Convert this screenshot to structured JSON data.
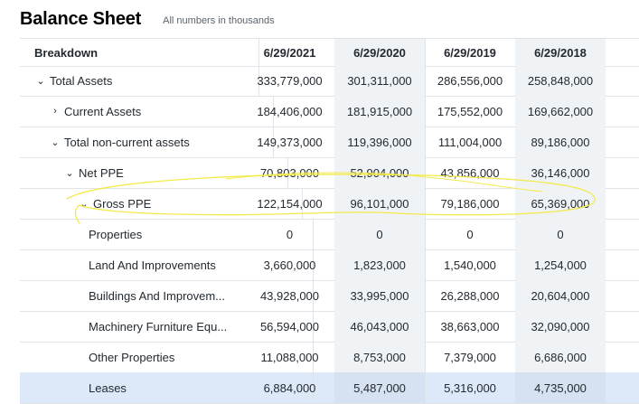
{
  "header": {
    "title": "Balance Sheet",
    "subtitle": "All numbers in thousands"
  },
  "table": {
    "breakdown_label": "Breakdown",
    "columns": [
      "6/29/2021",
      "6/29/2020",
      "6/29/2019",
      "6/29/2018"
    ],
    "rows": [
      {
        "label": "Total Assets",
        "chevron": "⌄",
        "values": [
          "333,779,000",
          "301,311,000",
          "286,556,000",
          "258,848,000"
        ]
      },
      {
        "label": "Current Assets",
        "chevron": "›",
        "values": [
          "184,406,000",
          "181,915,000",
          "175,552,000",
          "169,662,000"
        ]
      },
      {
        "label": "Total non-current assets",
        "chevron": "⌄",
        "values": [
          "149,373,000",
          "119,396,000",
          "111,004,000",
          "89,186,000"
        ]
      },
      {
        "label": "Net PPE",
        "chevron": "⌄",
        "values": [
          "70,803,000",
          "52,904,000",
          "43,856,000",
          "36,146,000"
        ]
      },
      {
        "label": "Gross PPE",
        "chevron": "⌄",
        "values": [
          "122,154,000",
          "96,101,000",
          "79,186,000",
          "65,369,000"
        ]
      },
      {
        "label": "Properties",
        "values": [
          "0",
          "0",
          "0",
          "0"
        ]
      },
      {
        "label": "Land And Improvements",
        "values": [
          "3,660,000",
          "1,823,000",
          "1,540,000",
          "1,254,000"
        ]
      },
      {
        "label": "Buildings And Improvem...",
        "values": [
          "43,928,000",
          "33,995,000",
          "26,288,000",
          "20,604,000"
        ]
      },
      {
        "label": "Machinery Furniture Equ...",
        "values": [
          "56,594,000",
          "46,043,000",
          "38,663,000",
          "32,090,000"
        ]
      },
      {
        "label": "Other Properties",
        "values": [
          "11,088,000",
          "8,753,000",
          "7,379,000",
          "6,686,000"
        ]
      },
      {
        "label": "Leases",
        "values": [
          "6,884,000",
          "5,487,000",
          "5,316,000",
          "4,735,000"
        ]
      }
    ]
  },
  "colors": {
    "annotation": "#f2ea4a",
    "highlight_row": "#dde9f8",
    "alt_column": "#f0f3f5"
  }
}
